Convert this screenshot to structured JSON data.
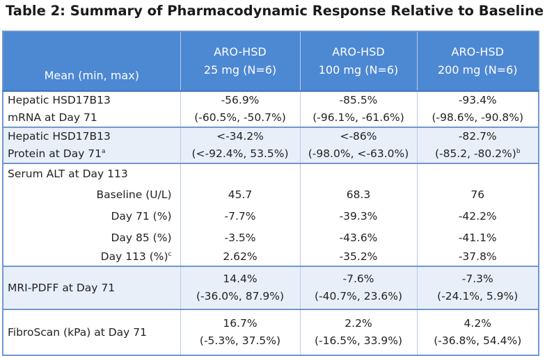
{
  "title": "Table 2: Summary of Pharmacodynamic Response Relative to Baseline",
  "header": {
    "label": "Mean (min, max)",
    "columns": [
      [
        "ARO-HSD",
        "25 mg (N=6)"
      ],
      [
        "ARO-HSD",
        "100 mg (N=6)"
      ],
      [
        "ARO-HSD",
        "200 mg (N=6)"
      ]
    ]
  },
  "rows": [
    {
      "label": [
        "Hepatic HSD17B13",
        "mRNA at Day 71"
      ],
      "shade": false,
      "cells": [
        [
          "-56.9%",
          "(-60.5%, -50.7%)"
        ],
        [
          "-85.5%",
          "(-96.1%, -61.6%)"
        ],
        [
          "-93.4%",
          "(-98.6%, -90.8%)"
        ]
      ]
    },
    {
      "label": [
        "Hepatic HSD17B13",
        {
          "text": "Protein at Day 71",
          "sup": "a"
        }
      ],
      "shade": true,
      "cells": [
        [
          "<-34.2%",
          "(<-92.4%, 53.5%)"
        ],
        [
          "<-86%",
          "(-98.0%, <-63.0%)"
        ],
        [
          "-82.7%",
          {
            "text": "(-85.2, -80.2%)",
            "sup": "b"
          }
        ]
      ]
    },
    {
      "label": [
        "Serum ALT at Day 113"
      ],
      "shade": false,
      "cells": []
    },
    {
      "label": [
        "Baseline (U/L)"
      ],
      "sub": true,
      "shade": false,
      "cells": [
        [
          "45.7"
        ],
        [
          "68.3"
        ],
        [
          "76"
        ]
      ]
    },
    {
      "label": [
        "Day 71 (%)"
      ],
      "sub": true,
      "shade": false,
      "cells": [
        [
          "-7.7%"
        ],
        [
          "-39.3%"
        ],
        [
          "-42.2%"
        ]
      ]
    },
    {
      "label": [
        "Day 85 (%)"
      ],
      "sub": true,
      "shade": false,
      "cells": [
        [
          "-3.5%"
        ],
        [
          "-43.6%"
        ],
        [
          "-41.1%"
        ]
      ]
    },
    {
      "label": [
        {
          "text": "Day 113 (%)",
          "sup": "c"
        }
      ],
      "sub": true,
      "shade": false,
      "cells": [
        [
          "2.62%"
        ],
        [
          "-35.2%"
        ],
        [
          "-37.8%"
        ]
      ]
    },
    {
      "label": [
        "MRI-PDFF at Day 71"
      ],
      "shade": true,
      "cells": [
        [
          "14.4%",
          "(-36.0%, 87.9%)"
        ],
        [
          "-7.6%",
          "(-40.7%, 23.6%)"
        ],
        [
          "-7.3%",
          "(-24.1%, 5.9%)"
        ]
      ]
    },
    {
      "label": [
        "FibroScan (kPa) at Day 71"
      ],
      "shade": false,
      "cells": [
        [
          "16.7%",
          "(-5.3%, 37.5%)"
        ],
        [
          "2.2%",
          "(-16.5%, 33.9%)"
        ],
        [
          "4.2%",
          "(-36.8%, 54.4%)"
        ]
      ]
    }
  ]
}
